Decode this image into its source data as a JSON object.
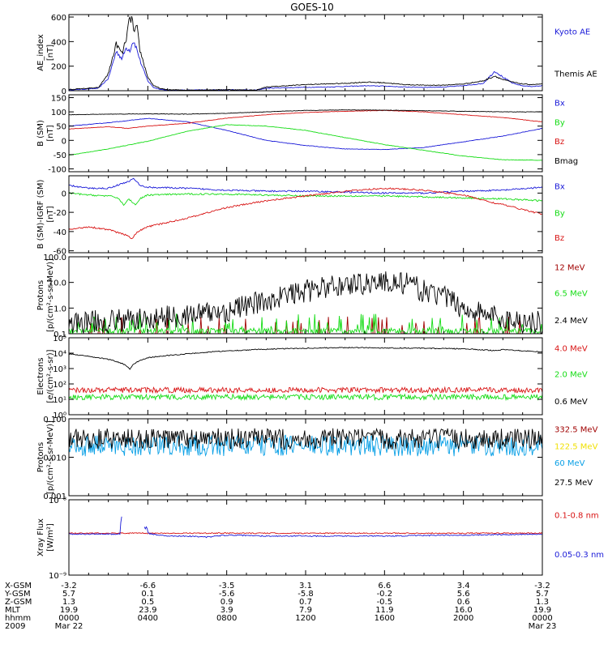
{
  "title": "GOES-10",
  "colors": {
    "black": "#000000",
    "blue": "#1a1ad8",
    "green": "#14dc14",
    "red": "#d81414",
    "darkred": "#a00000",
    "yellow": "#f0e000",
    "cyan": "#0aa0e6"
  },
  "chart_data": [
    {
      "type": "line",
      "id": "ae",
      "ylabel": [
        "AE_index",
        "[nT]"
      ],
      "scale": "linear",
      "ylim": [
        0,
        620
      ],
      "ticks": [
        "0",
        "200",
        "400",
        "600"
      ],
      "tick_values": [
        0,
        200,
        400,
        600
      ],
      "series": [
        {
          "name": "Kyoto AE",
          "color": "blue",
          "x": [
            0,
            0.5,
            1.0,
            1.5,
            2.0,
            2.4,
            2.7,
            2.9,
            3.1,
            3.25,
            3.4,
            3.6,
            3.8,
            4.0,
            4.3,
            4.7,
            5.0,
            6,
            8,
            9.5,
            10,
            11,
            12,
            13,
            14,
            15,
            16,
            17,
            18,
            19,
            20,
            21,
            21.6,
            22,
            22.5,
            23,
            23.5,
            24
          ],
          "values": [
            5,
            10,
            15,
            20,
            100,
            320,
            260,
            350,
            330,
            410,
            360,
            250,
            160,
            80,
            25,
            10,
            5,
            5,
            8,
            5,
            20,
            25,
            28,
            30,
            35,
            40,
            38,
            30,
            28,
            30,
            40,
            60,
            160,
            110,
            60,
            40,
            35,
            40
          ]
        },
        {
          "name": "Themis AE",
          "color": "black",
          "x": [
            0,
            0.5,
            1.0,
            1.5,
            2.0,
            2.4,
            2.7,
            2.9,
            3.05,
            3.2,
            3.3,
            3.45,
            3.6,
            3.8,
            4.0,
            4.3,
            4.7,
            5.0,
            6,
            8,
            9.5,
            10,
            11,
            12,
            13,
            14,
            15,
            16,
            17,
            18,
            19,
            20,
            21,
            21.6,
            22,
            22.5,
            23,
            23.5,
            24
          ],
          "values": [
            10,
            15,
            20,
            25,
            140,
            380,
            300,
            420,
            560,
            600,
            460,
            520,
            330,
            220,
            110,
            40,
            15,
            8,
            5,
            8,
            5,
            30,
            40,
            50,
            55,
            60,
            70,
            65,
            50,
            45,
            45,
            55,
            80,
            120,
            90,
            70,
            55,
            50,
            55
          ]
        }
      ]
    },
    {
      "type": "line",
      "id": "bsm",
      "ylabel": [
        "B (SM)",
        "[nT]"
      ],
      "scale": "linear",
      "ylim": [
        -110,
        160
      ],
      "ticks": [
        "150",
        "100",
        "50",
        "0",
        "-50",
        "-100"
      ],
      "tick_values": [
        150,
        100,
        50,
        0,
        -50,
        -100
      ],
      "series": [
        {
          "name": "Bx",
          "color": "blue",
          "x": [
            0,
            2,
            4,
            6,
            8,
            10,
            12,
            14,
            16,
            18,
            20,
            22,
            24
          ],
          "values": [
            50,
            62,
            77,
            65,
            35,
            0,
            -18,
            -30,
            -32,
            -25,
            -5,
            15,
            42
          ]
        },
        {
          "name": "By",
          "color": "green",
          "x": [
            0,
            2,
            4,
            6,
            8,
            10,
            12,
            14,
            16,
            18,
            20,
            22,
            24
          ],
          "values": [
            -52,
            -30,
            -3,
            32,
            55,
            50,
            35,
            10,
            -15,
            -35,
            -55,
            -68,
            -70
          ]
        },
        {
          "name": "Bz",
          "color": "red",
          "x": [
            0,
            2,
            3,
            4,
            6,
            8,
            10,
            12,
            14,
            16,
            18,
            20,
            22,
            24
          ],
          "values": [
            40,
            48,
            42,
            50,
            60,
            78,
            90,
            98,
            102,
            105,
            100,
            90,
            80,
            65
          ]
        },
        {
          "name": "Bmag",
          "color": "black",
          "x": [
            0,
            2,
            4,
            6,
            8,
            10,
            12,
            14,
            16,
            18,
            20,
            22,
            24
          ],
          "values": [
            90,
            92,
            93,
            92,
            95,
            100,
            105,
            107,
            106,
            104,
            102,
            100,
            100
          ]
        }
      ]
    },
    {
      "type": "line",
      "id": "bdiff",
      "ylabel": [
        "B (SM)-IGRF (SM)",
        "[nT]"
      ],
      "scale": "linear",
      "ylim": [
        -62,
        18
      ],
      "ticks": [
        "-60",
        "-40",
        "-20",
        "0"
      ],
      "tick_values": [
        -60,
        -40,
        -20,
        0
      ],
      "series": [
        {
          "name": "Bx",
          "color": "blue",
          "x": [
            0,
            1,
            2,
            3,
            3.3,
            3.6,
            4,
            6,
            8,
            10,
            12,
            14,
            16,
            18,
            20,
            22,
            24
          ],
          "values": [
            8,
            5,
            5,
            12,
            15,
            8,
            6,
            5,
            3,
            2,
            2,
            1,
            0,
            0,
            2,
            3,
            6
          ]
        },
        {
          "name": "By",
          "color": "green",
          "x": [
            0,
            1,
            2,
            2.5,
            2.8,
            3.0,
            3.4,
            3.6,
            4,
            6,
            8,
            10,
            12,
            14,
            16,
            18,
            20,
            22,
            24
          ],
          "values": [
            0,
            -2,
            -3,
            -5,
            -13,
            -6,
            -12,
            -6,
            -2,
            -1,
            -1,
            -2,
            -3,
            -3,
            -3,
            -4,
            -5,
            -6,
            -8
          ]
        },
        {
          "name": "Bz",
          "color": "red",
          "x": [
            0,
            1,
            2,
            2.8,
            3.2,
            3.5,
            4,
            6,
            8,
            10,
            12,
            14,
            16,
            18,
            20,
            21.5,
            22,
            23,
            24
          ],
          "values": [
            -38,
            -35,
            -38,
            -43,
            -47,
            -40,
            -35,
            -26,
            -15,
            -8,
            -3,
            2,
            5,
            3,
            -2,
            -10,
            -12,
            -17,
            -22
          ]
        }
      ]
    },
    {
      "type": "line",
      "id": "protons_low",
      "ylabel": [
        "Protons",
        "[p/(cm²-s-sr-MeV)]"
      ],
      "scale": "log",
      "ylim": [
        0.1,
        100
      ],
      "ticks": [
        "100.0",
        "10.0",
        "1.0",
        "0.1"
      ],
      "tick_values": [
        100,
        10,
        1,
        0.1
      ],
      "series": [
        {
          "name": "12 MeV",
          "color": "darkred",
          "base": 0.12,
          "noise": "spiky-low"
        },
        {
          "name": "6.5 MeV",
          "color": "green",
          "base": 0.15,
          "noise": "spiky-mid"
        },
        {
          "name": "2.4 MeV",
          "color": "black",
          "x": [
            0,
            4,
            8,
            10,
            12,
            14,
            16,
            17,
            18,
            20,
            22,
            24
          ],
          "values": [
            0.3,
            0.4,
            0.8,
            2.0,
            5.0,
            9.0,
            12.0,
            10.0,
            5.0,
            1.0,
            0.4,
            0.3
          ],
          "noise": "wide"
        }
      ]
    },
    {
      "type": "line",
      "id": "electrons",
      "ylabel": [
        "Electrons",
        "[e/(cm²-s-sr)]"
      ],
      "scale": "log",
      "ylim": [
        1,
        100000
      ],
      "ticks": [
        "10⁰",
        "10¹",
        "10²",
        "10³",
        "10⁴",
        "10⁵"
      ],
      "tick_values": [
        1,
        10,
        100,
        1000,
        10000,
        100000
      ],
      "series": [
        {
          "name": "4.0 MeV",
          "color": "red",
          "base": 40
        },
        {
          "name": "2.0 MeV",
          "color": "green",
          "base": 14
        },
        {
          "name": "0.6 MeV",
          "color": "black",
          "x": [
            0,
            1,
            2,
            2.8,
            3.1,
            3.4,
            4,
            6,
            8,
            10,
            12,
            14,
            16,
            18,
            20,
            21.5,
            22,
            24
          ],
          "values": [
            9000,
            6000,
            4000,
            1800,
            900,
            2500,
            5000,
            9000,
            14000,
            18000,
            21000,
            23000,
            22000,
            21000,
            19000,
            15000,
            17000,
            12000
          ]
        }
      ]
    },
    {
      "type": "line",
      "id": "protons_high",
      "ylabel": [
        "Protons",
        "[p/(cm²-s-sr-MeV)]"
      ],
      "scale": "log",
      "ylim": [
        0.001,
        0.1
      ],
      "ticks": [
        "0.100",
        "0.010",
        "0.001"
      ],
      "tick_values": [
        0.1,
        0.01,
        0.001
      ],
      "series": [
        {
          "name": "332.5 MeV",
          "color": "darkred"
        },
        {
          "name": "122.5 MeV",
          "color": "yellow"
        },
        {
          "name": "60 MeV",
          "color": "cyan",
          "base": 0.02
        },
        {
          "name": "27.5 MeV",
          "color": "black",
          "base": 0.03
        }
      ]
    },
    {
      "type": "line",
      "id": "xray",
      "ylabel": [
        "Xray Flux",
        "[W/m²]"
      ],
      "scale": "log",
      "ylim": [
        1e-09,
        1e-08
      ],
      "ticks": [
        "10⁻⁸",
        "10⁻⁹"
      ],
      "tick_values": [
        1e-08,
        1e-09
      ],
      "series": [
        {
          "name": "0.1-0.8 nm",
          "color": "red",
          "x": [
            0,
            24
          ],
          "values": [
            3.6e-09,
            3.6e-09
          ]
        },
        {
          "name": "0.05-0.3 nm",
          "color": "blue",
          "gap": [
            2.7,
            3.8
          ],
          "x": [
            0,
            2.6,
            2.65,
            2.7,
            3.8,
            3.85,
            3.95,
            4.0,
            4.2,
            5,
            6,
            7,
            8,
            10,
            12,
            16,
            20,
            24
          ],
          "values": [
            3.5e-09,
            3.5e-09,
            6e-09,
            6e-09,
            5e-09,
            4e-09,
            4.5e-09,
            3.6e-09,
            3.5e-09,
            3.3e-09,
            3.3e-09,
            3.2e-09,
            3.4e-09,
            3.3e-09,
            3.3e-09,
            3.3e-09,
            3.4e-09,
            3.5e-09
          ]
        }
      ]
    }
  ],
  "ephemeris": {
    "labels": [
      "X-GSM",
      "Y-GSM",
      "Z-GSM",
      "MLT",
      "hhmm",
      "2009"
    ],
    "columns": [
      [
        "-3.2",
        "5.7",
        "1.3",
        "19.9",
        "0000",
        "Mar 22"
      ],
      [
        "-6.6",
        "0.1",
        "0.5",
        "23.9",
        "0400",
        ""
      ],
      [
        "-3.5",
        "-5.6",
        "0.9",
        "3.9",
        "0800",
        ""
      ],
      [
        "3.1",
        "-5.8",
        "0.7",
        "7.9",
        "1200",
        ""
      ],
      [
        "6.6",
        "-0.2",
        "-0.5",
        "11.9",
        "1600",
        ""
      ],
      [
        "3.4",
        "5.6",
        "0.6",
        "16.0",
        "2000",
        ""
      ],
      [
        "-3.2",
        "5.7",
        "1.3",
        "19.9",
        "0000",
        "Mar 23"
      ]
    ]
  }
}
